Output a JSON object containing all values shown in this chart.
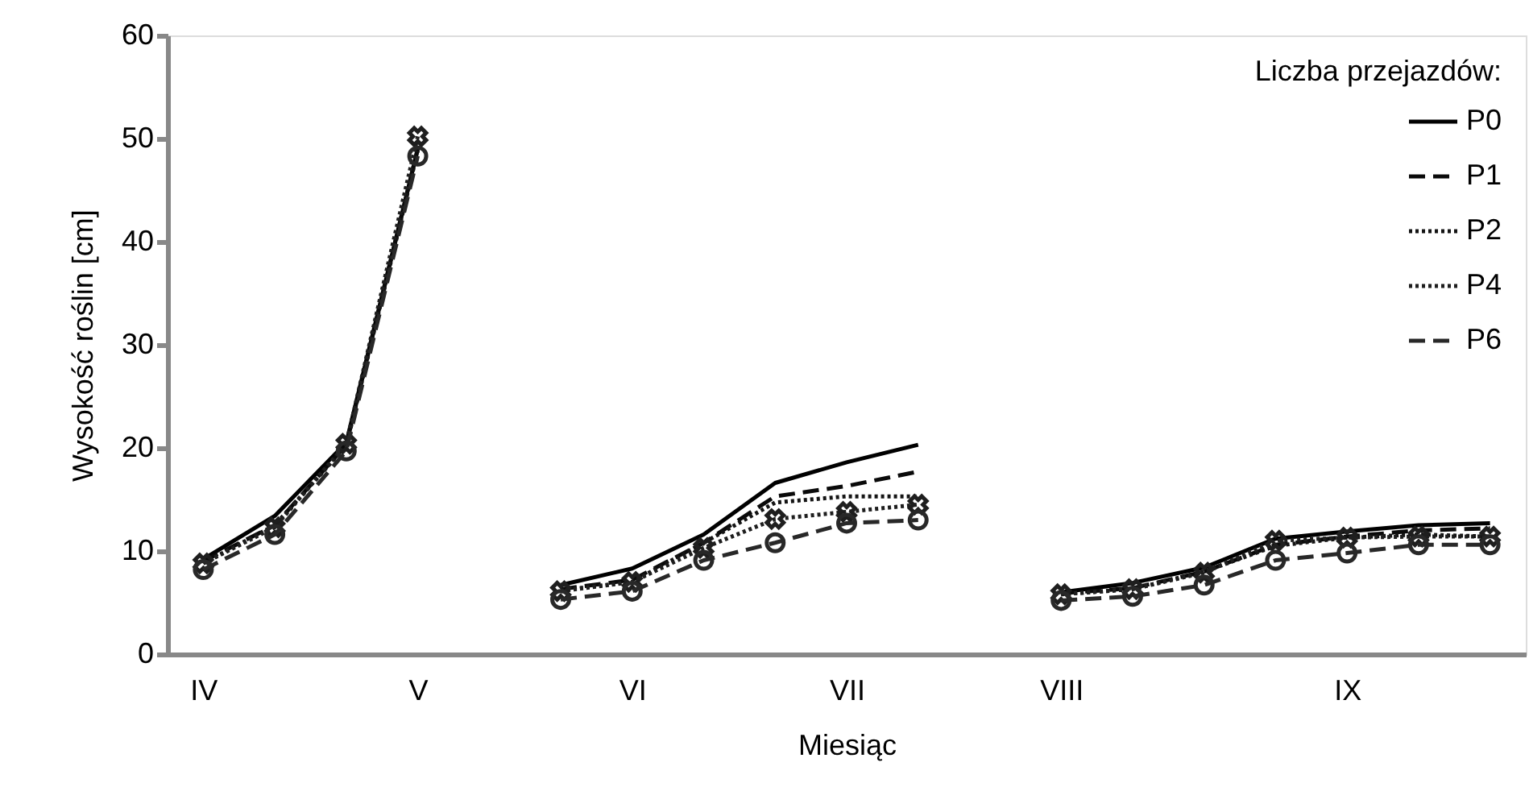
{
  "chart_data": {
    "type": "line",
    "xlabel": "Miesiąc",
    "ylabel": "Wysokość roślin [cm]",
    "legend_title": "Liczba przejazdów:",
    "categories": [
      "IV",
      null,
      null,
      "V",
      null,
      null,
      "VI",
      null,
      null,
      "VII",
      null,
      null,
      "VIII",
      null,
      null,
      null,
      "IX",
      null,
      null
    ],
    "ylim": [
      0,
      60
    ],
    "yticks": [
      0,
      10,
      20,
      30,
      40,
      50,
      60
    ],
    "grid": false,
    "legend": "top right",
    "series": [
      {
        "name": "P0",
        "color": "#000000",
        "line_style": "solid",
        "marker": "none",
        "values": [
          9.2,
          13.4,
          20.5,
          49,
          null,
          6.7,
          8.3,
          11.6,
          16.6,
          18.6,
          20.3,
          null,
          6.0,
          6.9,
          8.4,
          11.2,
          11.9,
          12.5,
          12.7
        ]
      },
      {
        "name": "P1",
        "color": "#0a0a0a",
        "line_style": "dashed",
        "marker": "none",
        "values": [
          9.0,
          12.5,
          20.3,
          49,
          null,
          6.3,
          7.2,
          10.8,
          15.3,
          16.3,
          17.7,
          null,
          5.9,
          6.4,
          8.0,
          10.6,
          11.4,
          12.0,
          12.2
        ]
      },
      {
        "name": "P2",
        "color": "#141414",
        "line_style": "dotted",
        "marker": "none",
        "values": [
          8.8,
          12.5,
          20.2,
          48.8,
          null,
          6.2,
          7.0,
          10.8,
          14.7,
          15.3,
          15.3,
          null,
          5.8,
          6.3,
          8.0,
          10.5,
          11.3,
          11.6,
          11.4
        ]
      },
      {
        "name": "P4",
        "color": "#1e1e1e",
        "line_style": "dotted",
        "marker": "cross",
        "values": [
          8.8,
          12.3,
          20.4,
          50.2,
          null,
          6.1,
          7.0,
          10.3,
          13.1,
          13.8,
          14.5,
          null,
          5.8,
          6.3,
          7.9,
          11.0,
          11.3,
          11.4,
          11.4
        ]
      },
      {
        "name": "P6",
        "color": "#282828",
        "line_style": "dashed",
        "marker": "circle",
        "values": [
          8.2,
          11.6,
          19.7,
          48.3,
          null,
          5.3,
          6.1,
          9.1,
          10.8,
          12.7,
          13.0,
          null,
          5.2,
          5.6,
          6.7,
          9.1,
          9.8,
          10.6,
          10.6
        ]
      }
    ]
  }
}
